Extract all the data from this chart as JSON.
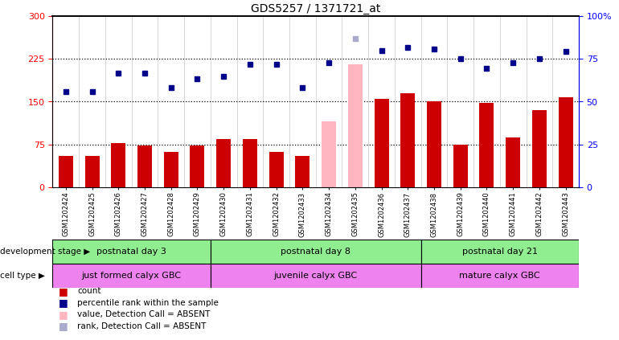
{
  "title": "GDS5257 / 1371721_at",
  "samples": [
    "GSM1202424",
    "GSM1202425",
    "GSM1202426",
    "GSM1202427",
    "GSM1202428",
    "GSM1202429",
    "GSM1202430",
    "GSM1202431",
    "GSM1202432",
    "GSM1202433",
    "GSM1202434",
    "GSM1202435",
    "GSM1202436",
    "GSM1202437",
    "GSM1202438",
    "GSM1202439",
    "GSM1202440",
    "GSM1202441",
    "GSM1202442",
    "GSM1202443"
  ],
  "count_values": [
    55,
    55,
    78,
    73,
    62,
    73,
    85,
    85,
    62,
    55,
    115,
    215,
    155,
    165,
    150,
    75,
    148,
    88,
    135,
    158
  ],
  "count_absent": [
    false,
    false,
    false,
    false,
    false,
    false,
    false,
    false,
    false,
    false,
    true,
    true,
    false,
    false,
    false,
    false,
    false,
    false,
    false,
    false
  ],
  "rank_values": [
    168,
    168,
    200,
    200,
    175,
    190,
    195,
    215,
    215,
    175,
    218,
    260,
    240,
    245,
    242,
    225,
    208,
    218,
    225,
    238
  ],
  "rank_absent": [
    false,
    false,
    false,
    false,
    false,
    false,
    false,
    false,
    false,
    false,
    false,
    true,
    false,
    false,
    false,
    false,
    false,
    false,
    false,
    false
  ],
  "dev_boundaries": [
    0,
    6,
    14,
    20
  ],
  "dev_labels": [
    "postnatal day 3",
    "postnatal day 8",
    "postnatal day 21"
  ],
  "dev_color": "#90EE90",
  "cell_boundaries": [
    0,
    6,
    14,
    20
  ],
  "cell_labels": [
    "just formed calyx GBC",
    "juvenile calyx GBC",
    "mature calyx GBC"
  ],
  "cell_color": "#EE82EE",
  "ylim_left": [
    0,
    300
  ],
  "ylim_right": [
    0,
    100
  ],
  "yticks_left": [
    0,
    75,
    150,
    225,
    300
  ],
  "yticks_right": [
    0,
    25,
    50,
    75,
    100
  ],
  "ytick_labels_right": [
    "0",
    "25",
    "50",
    "75",
    "100%"
  ],
  "bar_color_normal": "#CC0000",
  "bar_color_absent": "#FFB6C1",
  "rank_color_normal": "#00008B",
  "rank_color_absent": "#AAAACC",
  "hlines": [
    75,
    150,
    225
  ],
  "legend_labels": [
    "count",
    "percentile rank within the sample",
    "value, Detection Call = ABSENT",
    "rank, Detection Call = ABSENT"
  ]
}
